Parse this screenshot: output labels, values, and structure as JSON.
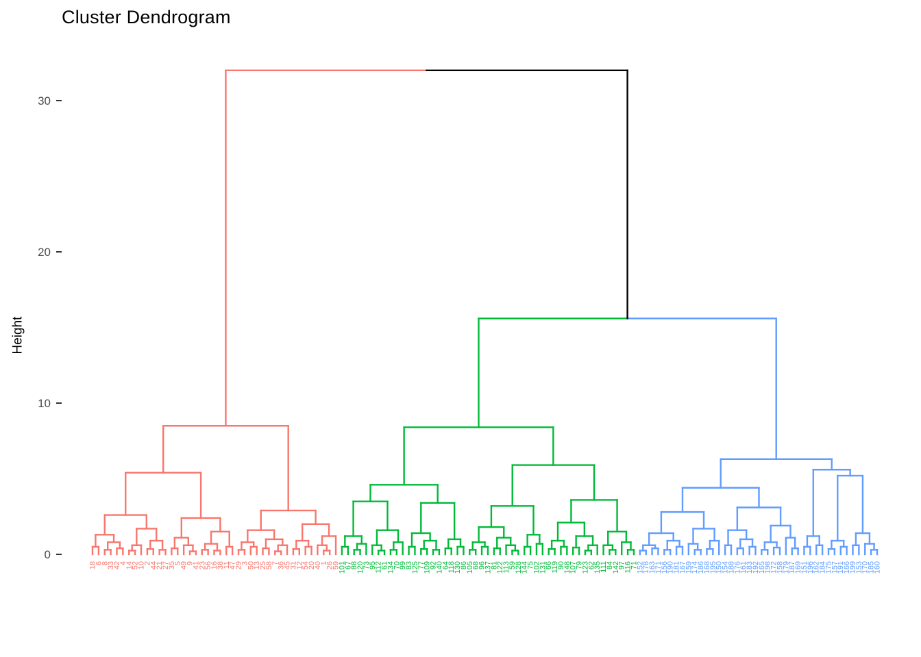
{
  "chart_data": {
    "type": "dendrogram",
    "title": "Cluster Dendrogram",
    "ylabel": "Height",
    "xlabel": "",
    "yticks": [
      0,
      10,
      20,
      30
    ],
    "ylim": [
      0,
      33
    ],
    "grid": false,
    "legend": false,
    "style": {
      "background": "#FFFFFF",
      "title_color": "#000000",
      "tick_color": "#333333",
      "tick_label_color": "#4D4D4D",
      "root_link_color": "#000000"
    },
    "clusters": [
      {
        "name": "cluster-1",
        "color": "#F8766D",
        "n_leaves": 41,
        "apex_height": 8.5
      },
      {
        "name": "cluster-2",
        "color": "#00BA38",
        "n_leaves": 49,
        "apex_height": 8.4
      },
      {
        "name": "cluster-3",
        "color": "#619CFF",
        "n_leaves": 40,
        "apex_height": 6.3
      }
    ],
    "merge_heights": {
      "root": 32,
      "cluster2_cluster3": 15.6,
      "cluster1_apex": 8.5,
      "cluster2_apex": 8.4,
      "cluster3_apex": 6.3
    },
    "tree": {
      "h": 32,
      "halves": [
        "#F8766D",
        "#000000"
      ],
      "left": {
        "color": "#F8766D",
        "tree": [
          8.5,
          [
            5.4,
            [
              2.6,
              [
                1.3,
                [
                  0.5,
                  18,
                  6
                ],
                [
                  0.8,
                  [
                    0.3,
                    8,
                    33
                  ],
                  [
                    0.4,
                    42,
                    4
                  ]
                ]
              ],
              [
                1.7,
                [
                  0.6,
                  [
                    0.25,
                    14,
                    52
                  ],
                  10
                ],
                [
                  0.9,
                  [
                    0.35,
                    2,
                    44
                  ],
                  [
                    0.3,
                    21,
                    27
                  ]
                ]
              ]
            ],
            [
              2.4,
              [
                1.1,
                [
                  0.4,
                  35,
                  5
                ],
                [
                  0.6,
                  49,
                  [
                    0.2,
                    9,
                    41
                  ]
                ]
              ],
              [
                1.5,
                [
                  0.7,
                  [
                    0.3,
                    23,
                    56
                  ],
                  [
                    0.25,
                    16,
                    38
                  ]
                ],
                [
                  0.5,
                  11,
                  47
                ]
              ]
            ]
          ],
          [
            2.9,
            [
              1.6,
              [
                0.8,
                [
                  0.3,
                  29,
                  3
                ],
                [
                  0.5,
                  50,
                  13
                ]
              ],
              [
                1.0,
                [
                  0.4,
                  25,
                  58
                ],
                [
                  0.6,
                  [
                    0.2,
                    7,
                    36
                  ],
                  45
                ]
              ]
            ],
            [
              2.0,
              [
                0.9,
                [
                  0.35,
                  31,
                  12
                ],
                [
                  0.5,
                  54,
                  20
                ]
              ],
              [
                1.2,
                [
                  0.6,
                  40,
                  [
                    0.25,
                    1,
                    26
                  ]
                ],
                59
              ]
            ]
          ]
        ]
      },
      "right": {
        "h": 15.6,
        "halves": [
          "#00BA38",
          "#619CFF"
        ],
        "left": {
          "color": "#00BA38",
          "tree": [
            8.4,
            [
              4.6,
              [
                3.5,
                [
                  1.2,
                  [
                    0.5,
                    101,
                    67
                  ],
                  [
                    0.7,
                    [
                      0.3,
                      88,
                      120
                    ],
                    73
                  ]
                ],
                [
                  1.6,
                  [
                    0.6,
                    95,
                    [
                      0.25,
                      112,
                      61
                    ]
                  ],
                  [
                    0.8,
                    [
                      0.3,
                      134,
                      70
                    ],
                    99
                  ]
                ]
              ],
              [
                3.4,
                [
                  1.4,
                  [
                    0.5,
                    83,
                    125
                  ],
                  [
                    0.9,
                    [
                      0.35,
                      77,
                      109
                    ],
                    [
                      0.3,
                      92,
                      140
                    ]
                  ]
                ],
                [
                  1.0,
                  [
                    0.4,
                    64,
                    118
                  ],
                  [
                    0.5,
                    130,
                    86
                  ]
                ]
              ]
            ],
            [
              5.9,
              [
                3.2,
                [
                  1.8,
                  [
                    0.8,
                    [
                      0.3,
                      105,
                      68
                    ],
                    [
                      0.5,
                      96,
                      137
                    ]
                  ],
                  [
                    1.1,
                    [
                      0.4,
                      81,
                      122
                    ],
                    [
                      0.6,
                      113,
                      [
                        0.25,
                        59,
                        128
                      ]
                    ]
                  ]
                ],
                [
                  1.3,
                  [
                    0.5,
                    144,
                    75
                  ],
                  [
                    0.7,
                    102,
                    131
                  ]
                ]
              ],
              [
                3.6,
                [
                  2.1,
                  [
                    0.9,
                    [
                      0.35,
                      66,
                      119
                    ],
                    [
                      0.5,
                      90,
                      148
                    ]
                  ],
                  [
                    1.2,
                    [
                      0.45,
                      107,
                      79
                    ],
                    [
                      0.6,
                      [
                        0.25,
                        123,
                        62
                      ],
                      135
                    ]
                  ]
                ],
                [
                  1.5,
                  [
                    0.6,
                    111,
                    [
                      0.3,
                      84,
                      142
                    ]
                  ],
                  [
                    0.8,
                    97,
                    [
                      0.3,
                      116,
                      71
                    ]
                  ]
                ]
              ]
            ]
          ]
        },
        "right": {
          "color": "#619CFF",
          "tree": [
            6.3,
            [
              4.4,
              [
                2.8,
                [
                  1.4,
                  [
                    0.6,
                    [
                      0.25,
                      152,
                      178
                    ],
                    [
                      0.4,
                      163,
                      171
                    ]
                  ],
                  [
                    0.9,
                    [
                      0.3,
                      156,
                      190
                    ],
                    [
                      0.5,
                      181,
                      167
                    ]
                  ]
                ],
                [
                  1.7,
                  [
                    0.7,
                    159,
                    [
                      0.3,
                      174,
                      186
                    ]
                  ],
                  [
                    0.9,
                    [
                      0.35,
                      168,
                      195
                    ],
                    150
                  ]
                ]
              ],
              [
                3.1,
                [
                  1.6,
                  [
                    0.6,
                    154,
                    188
                  ],
                  [
                    1.0,
                    [
                      0.4,
                      176,
                      161
                    ],
                    [
                      0.5,
                      183,
                      192
                    ]
                  ]
                ],
                [
                  1.9,
                  [
                    0.8,
                    [
                      0.3,
                      165,
                      198
                    ],
                    [
                      0.45,
                      172,
                      158
                    ]
                  ],
                  [
                    1.1,
                    179,
                    [
                      0.4,
                      187,
                      169
                    ]
                  ]
                ]
              ]
            ],
            [
              5.6,
              [
                1.2,
                [
                  0.5,
                  151,
                  196
                ],
                [
                  0.6,
                  162,
                  184
                ]
              ],
              [
                5.2,
                [
                  0.9,
                  [
                    0.35,
                    175,
                    157
                  ],
                  [
                    0.5,
                    191,
                    166
                  ]
                ],
                [
                  1.4,
                  [
                    0.6,
                    199,
                    153
                  ],
                  [
                    0.7,
                    170,
                    [
                      0.3,
                      185,
                      160
                    ]
                  ]
                ]
              ]
            ]
          ]
        }
      }
    }
  }
}
